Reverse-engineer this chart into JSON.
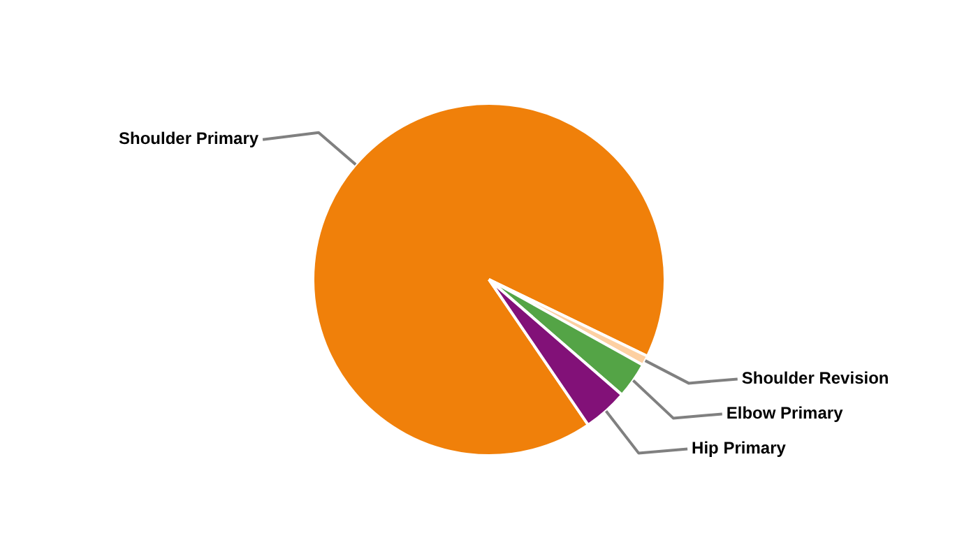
{
  "chart_data": {
    "type": "pie",
    "categories": [
      "Shoulder Primary",
      "Shoulder Revision",
      "Elbow Primary",
      "Hip Primary"
    ],
    "values": [
      91.7,
      0.9,
      3.3,
      4.1
    ],
    "colors": [
      "#f0800a",
      "#fdd0a2",
      "#54a446",
      "#821178"
    ],
    "legend": false
  }
}
